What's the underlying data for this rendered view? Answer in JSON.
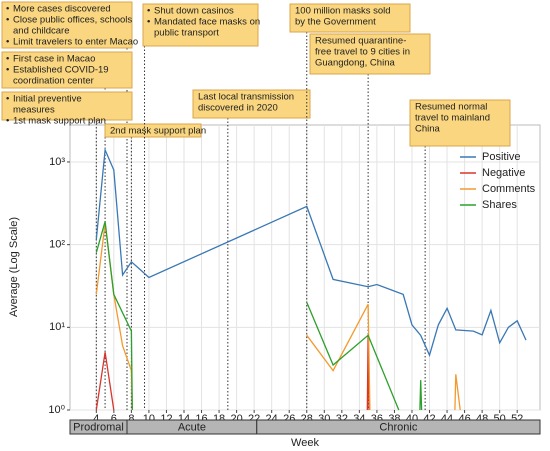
{
  "chart_data": {
    "type": "line",
    "xlabel": "Week",
    "ylabel": "Average (Log Scale)",
    "xlim": [
      1,
      54.6
    ],
    "xticks": [
      4,
      6,
      8,
      10,
      12,
      14,
      16,
      18,
      20,
      22,
      24,
      26,
      28,
      30,
      32,
      34,
      36,
      38,
      40,
      42,
      44,
      46,
      48,
      50,
      52
    ],
    "ylim": [
      1,
      2800
    ],
    "log_y": true,
    "yticks": [
      {
        "value": 1,
        "label": "10⁰"
      },
      {
        "value": 10,
        "label": "10¹"
      },
      {
        "value": 100,
        "label": "10²"
      },
      {
        "value": 1000,
        "label": "10³"
      }
    ],
    "grid": true,
    "legend": "upper right",
    "series": [
      {
        "name": "Positive",
        "color": "#3a78b5",
        "x": [
          4,
          5,
          6,
          7,
          8,
          9,
          10,
          28,
          31,
          35,
          36,
          39,
          40,
          41,
          42,
          43,
          44,
          45,
          47,
          48,
          49,
          50,
          51,
          52,
          53
        ],
        "values": [
          115,
          1400,
          800,
          43,
          62,
          50,
          40,
          290,
          38,
          31,
          33,
          25,
          10.7,
          8,
          4.6,
          10.7,
          17,
          9.3,
          9,
          8.1,
          16,
          6.5,
          10,
          12,
          7
        ]
      },
      {
        "name": "Negative",
        "color": "#d9352b",
        "x": [
          4,
          5,
          6,
          20,
          34.9,
          35,
          35.1
        ],
        "values": [
          1,
          5,
          1,
          null,
          1,
          8,
          1
        ]
      },
      {
        "name": "Comments",
        "color": "#f39a2e",
        "x": [
          4,
          5,
          6,
          7,
          8,
          8.1,
          20,
          28,
          31,
          35,
          35.2,
          40,
          44.9,
          45,
          45.5
        ],
        "values": [
          25,
          180,
          25,
          6,
          3,
          1,
          null,
          8,
          3,
          19,
          1,
          null,
          1,
          2.7,
          1
        ]
      },
      {
        "name": "Shares",
        "color": "#2ca02c",
        "x": [
          4,
          5,
          6,
          7,
          8,
          8.1,
          20,
          28,
          31,
          35,
          38.5,
          40,
          40.9,
          41,
          41.1
        ],
        "values": [
          80,
          190,
          25,
          15,
          9,
          1,
          null,
          20,
          3.5,
          8,
          1,
          null,
          1,
          2.3,
          1
        ]
      }
    ],
    "phases": [
      {
        "name": "Prodromal",
        "start": 1,
        "end": 7.5
      },
      {
        "name": "Acute",
        "start": 7.5,
        "end": 22.3
      },
      {
        "name": "Chronic",
        "start": 22.3,
        "end": 54.6
      }
    ],
    "annotations": [
      {
        "week": 7.5,
        "items": [
          [
            "More cases discovered"
          ],
          [
            "Close public offices, schools",
            "and childcare"
          ],
          [
            "Limit travelers to enter Macao"
          ]
        ]
      },
      {
        "week": 5,
        "items": [
          [
            "First case in Macao"
          ],
          [
            "Established COVID-19",
            "coordination center"
          ]
        ]
      },
      {
        "week": 4,
        "items": [
          [
            "Initial preventive",
            "measures"
          ],
          [
            "1st mask support plan"
          ]
        ]
      },
      {
        "week": 8,
        "items": [
          [
            "2nd mask support plan"
          ]
        ]
      },
      {
        "week": 9.5,
        "items": [
          [
            "Shut down casinos"
          ],
          [
            "Mandated face masks on",
            "public transport"
          ]
        ]
      },
      {
        "week": 19,
        "items": [
          [
            "Last local transmission",
            "discovered in 2020"
          ]
        ]
      },
      {
        "week": 28,
        "items": [
          [
            "100 million masks sold",
            "by the Government"
          ]
        ]
      },
      {
        "week": 35,
        "items": [
          [
            "Resumed quarantine-",
            "free travel to 9 cities in",
            "Guangdong, China"
          ]
        ]
      },
      {
        "week": 41.5,
        "items": [
          [
            "Resumed normal",
            "travel to mainland",
            "China"
          ]
        ]
      }
    ]
  }
}
